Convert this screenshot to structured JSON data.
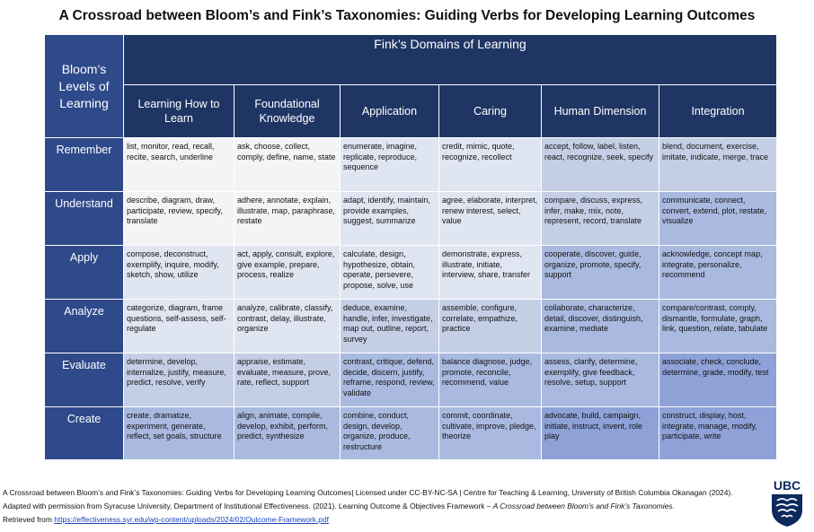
{
  "title": "A Crossroad between Bloom’s and Fink’s Taxonomies: Guiding Verbs for Developing Learning Outcomes",
  "corner_label": "Bloom’s Levels of Learning",
  "fink_header": "Fink’s Domains of Learning",
  "columns": [
    "Learning How to Learn",
    "Foundational Knowledge",
    "Application",
    "Caring",
    "Human Dimension",
    "Integration"
  ],
  "rows": [
    {
      "level": "Remember",
      "cells": [
        "list, monitor, read, recall, recite, search, underline",
        "ask, choose, collect, comply, define, name, state",
        "enumerate, imagine, replicate,  reproduce, sequence",
        "credit, mimic, quote, recognize, recollect",
        "accept, follow, label, listen, react, recognize, seek, specify",
        "blend, document, exercise, imitate, indicate, merge, trace"
      ]
    },
    {
      "level": "Understand",
      "cells": [
        "describe, diagram, draw, participate, review, specify, translate",
        "adhere, annotate, explain, illustrate, map, paraphrase, restate",
        "adapt, identify, maintain, provide examples, suggest, summarize",
        "agree, elaborate, interpret, renew interest, select, value",
        "compare, discuss, express, infer, make, mix, note, represent, record, translate",
        "communicate, connect, convert, extend, plot, restate, visualize"
      ]
    },
    {
      "level": "Apply",
      "cells": [
        "compose, deconstruct, exemplify, inquire, modify, sketch, show, utilize",
        "act, apply, consult, explore, give example, prepare, process, realize",
        "calculate, design, hypothesize, obtain, operate, persevere, propose, solve, use",
        "demonstrate, express, illustrate, initiate, interview, share, transfer",
        "cooperate, discover, guide, organize, promote, specify, support",
        "acknowledge, concept map, integrate, personalize, recommend"
      ]
    },
    {
      "level": "Analyze",
      "cells": [
        "categorize, diagram, frame questions, self-assess, self-regulate",
        "analyze, calibrate, classify, contrast, delay, illustrate, organize",
        "deduce, examine, handle, infer, investigate, map out, outline, report, survey",
        "assemble, configure, correlate, empathize, practice",
        "collaborate, characterize, detail, discover, distinguish, examine, mediate",
        "compare/contrast, comply, dismantle, formulate, graph, link, question, relate, tabulate"
      ]
    },
    {
      "level": "Evaluate",
      "cells": [
        "determine, develop, internalize, justify, measure, predict, resolve, verify",
        "appraise, estimate, evaluate, measure, prove, rate, reflect, support",
        "contrast, critique, defend, decide, discern, justify, reframe, respond, review, validate",
        "balance diagnose, judge, promote, reconcile, recommend, value",
        "assess, clarify, determine, exemplify, give feedback, resolve, setup, support",
        "associate, check,  conclude, determine, grade, modify, test"
      ]
    },
    {
      "level": "Create",
      "cells": [
        "create, dramatize, experiment, generate, reflect, set goals, structure",
        "align, animate, compile, develop, exhibit, perform, predict, synthesize",
        "combine, conduct, design, develop, organize, produce, restructure",
        "commit, coordinate, cultivate, improve, pledge, theorize",
        "advocate, build, campaign, initiate, instruct, invent, role play",
        "construct, display, host, integrate, manage, modify, participate, write"
      ]
    }
  ],
  "footer": {
    "line1": "A Crossroad between Bloom’s and Fink’s Taxonomies: Guiding Verbs for Developing Learning Outcomes| Licensed under CC-BY-NC-SA | Centre for Teaching & Learning, University of British Columbia Okanagan (2024).",
    "line2_prefix": "Adapted with permission from Syracuse University, Department of Institutional Effectiveness. (2021). Learning Outcome & Objectives Framework – ",
    "line2_italic": "A Crossroad between Bloom’s and Fink’s Taxonomies",
    "line2_suffix": ".",
    "line3_prefix": "Retrieved from ",
    "line3_link": "https://effectiveness.syr.edu/wp-content/uploads/2024/02/Outcome-Framework.pdf"
  },
  "logo_text": "UBC",
  "colors": {
    "header_dark": "#1f3564",
    "row_header": "#2e4a8a",
    "cell_white": "#f4f4f4",
    "cell_pale": "#dfe5f1",
    "cell_light": "#c4cfe6",
    "cell_mid": "#a9b9df",
    "cell_deep": "#8ea2d8"
  }
}
